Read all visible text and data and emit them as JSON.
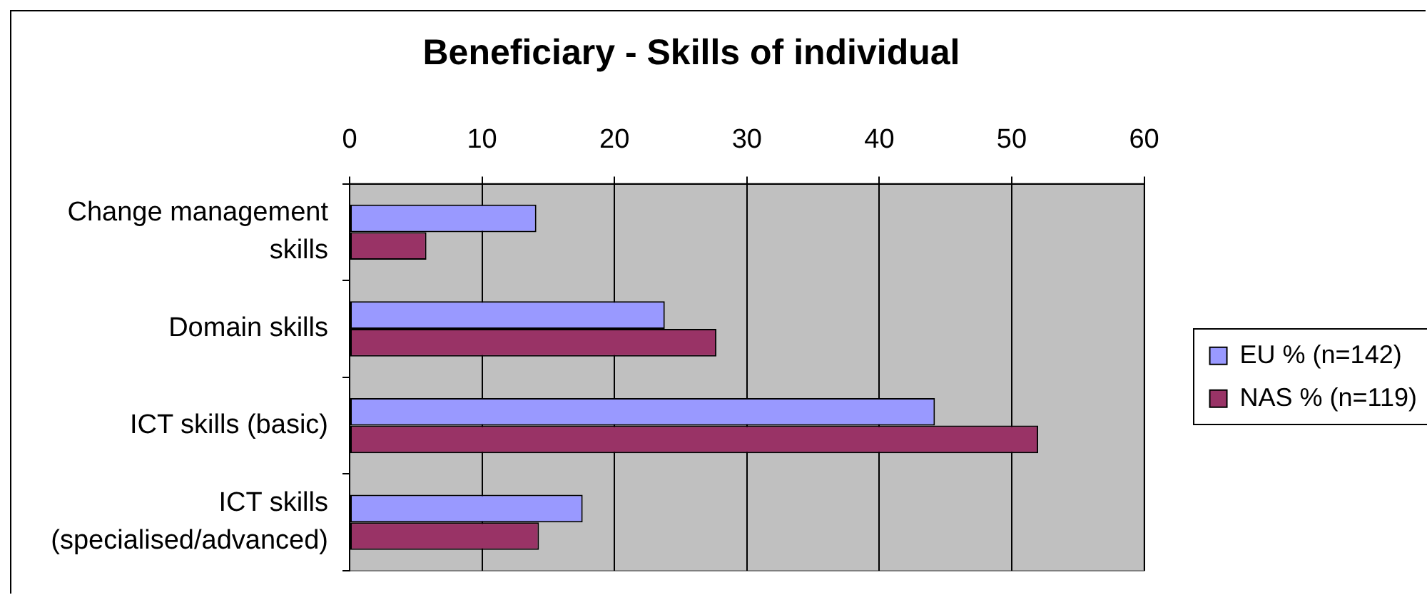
{
  "chart_data": {
    "type": "bar",
    "orientation": "horizontal",
    "title": "Beneficiary - Skills of individual",
    "categories": [
      "Change management skills",
      "Domain skills",
      "ICT skills (basic)",
      "ICT skills (specialised/advanced)"
    ],
    "series": [
      {
        "name": "EU % (n=142)",
        "color": "#9999ff",
        "values": [
          14.1,
          23.8,
          44.2,
          17.6
        ]
      },
      {
        "name": "NAS % (n=119)",
        "color": "#993366",
        "values": [
          5.8,
          27.7,
          52.0,
          14.3
        ]
      }
    ],
    "xlim": [
      0,
      60
    ],
    "xticks": [
      0,
      10,
      20,
      30,
      40,
      50,
      60
    ],
    "grid": "x",
    "legend": "right"
  }
}
